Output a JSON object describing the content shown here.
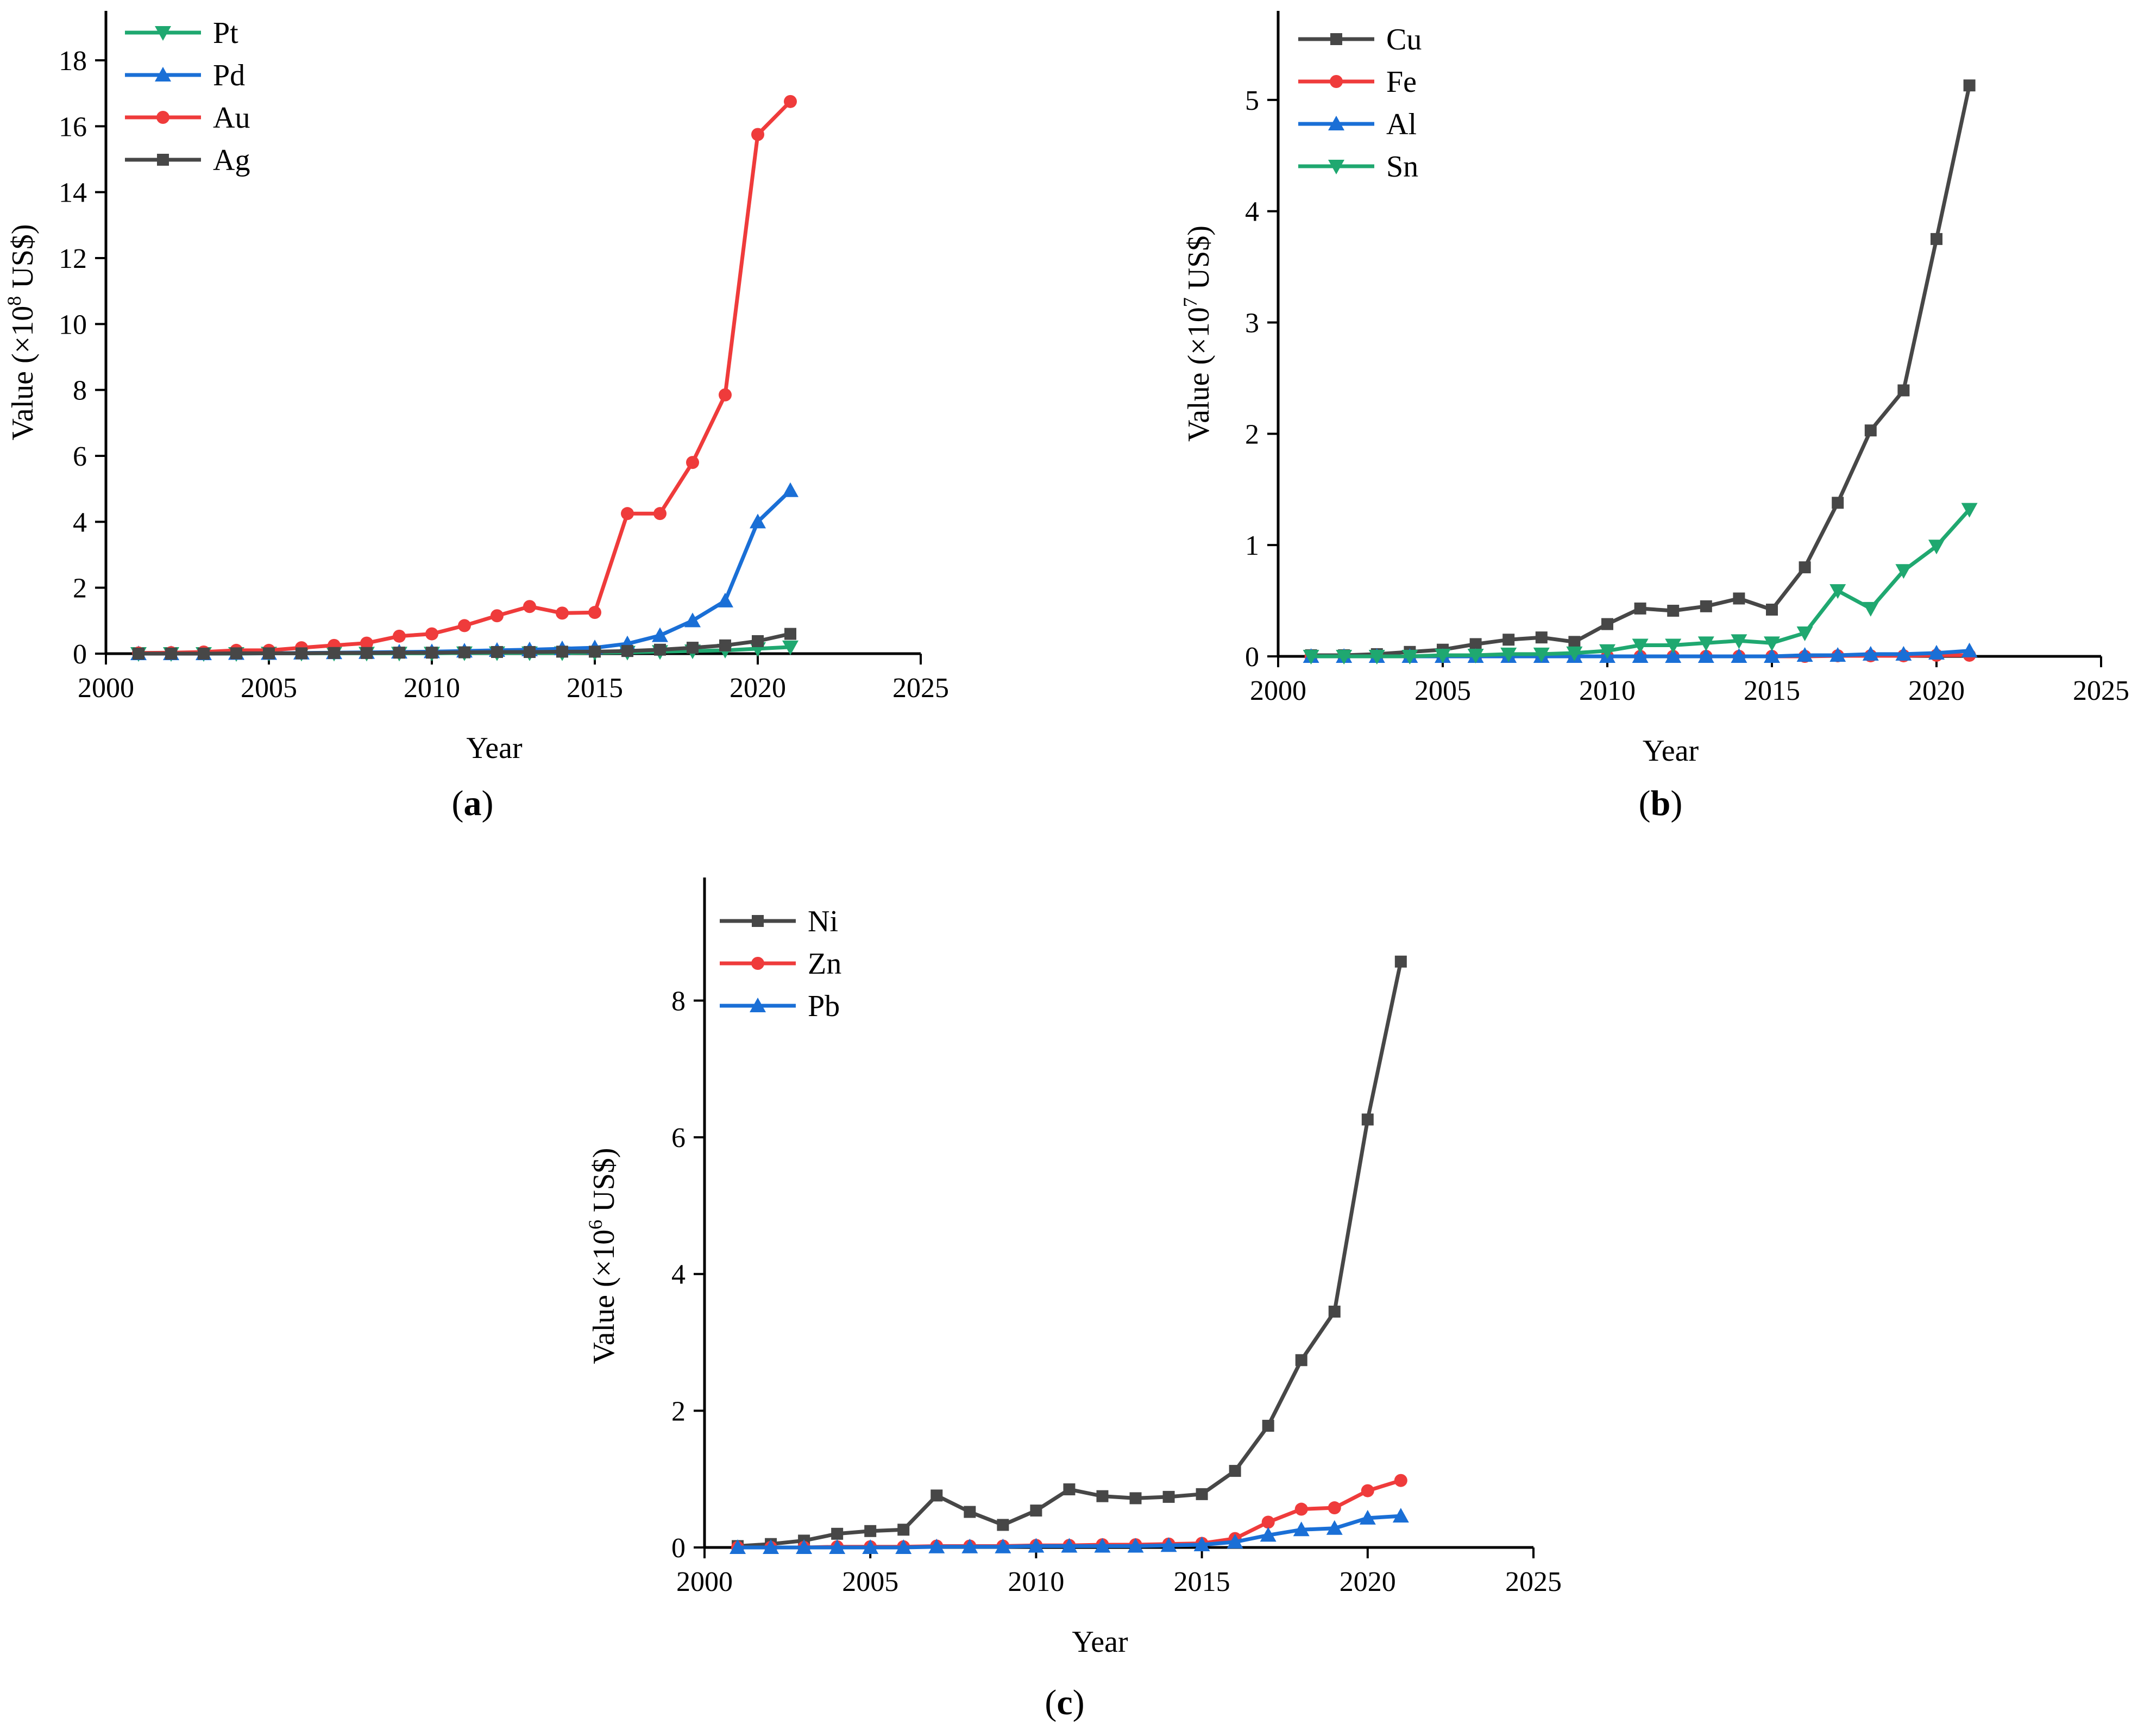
{
  "chart_data": [
    {
      "type": "line",
      "panel": "a",
      "xlabel": "Year",
      "ylabel_prefix": "Value (×10",
      "ylabel_exp": "8",
      "ylabel_suffix": " US$)",
      "xlim": [
        2000,
        2025
      ],
      "ylim": [
        0,
        19.5
      ],
      "xticks": [
        2000,
        2005,
        2010,
        2015,
        2020,
        2025
      ],
      "yticks": [
        0,
        2,
        4,
        6,
        8,
        10,
        12,
        14,
        16,
        18
      ],
      "x": [
        2001,
        2002,
        2003,
        2004,
        2005,
        2006,
        2007,
        2008,
        2009,
        2010,
        2011,
        2012,
        2013,
        2014,
        2015,
        2016,
        2017,
        2018,
        2019,
        2020,
        2021
      ],
      "legend": "top-left",
      "series": [
        {
          "name": "Pt",
          "color": "#1fa870",
          "marker": "triangle-down",
          "values": [
            0,
            0,
            0,
            0,
            0.01,
            0.01,
            0.01,
            0.01,
            0.01,
            0.01,
            0.02,
            0.02,
            0.02,
            0.02,
            0.03,
            0.04,
            0.06,
            0.08,
            0.1,
            0.15,
            0.2
          ]
        },
        {
          "name": "Pd",
          "color": "#1a6fd6",
          "marker": "triangle-up",
          "values": [
            0,
            0,
            0,
            0.01,
            0.01,
            0.02,
            0.03,
            0.04,
            0.05,
            0.06,
            0.08,
            0.1,
            0.12,
            0.15,
            0.18,
            0.3,
            0.55,
            1.0,
            1.6,
            4.0,
            4.95
          ]
        },
        {
          "name": "Au",
          "color": "#ef3b3b",
          "marker": "circle",
          "values": [
            0.02,
            0.03,
            0.05,
            0.1,
            0.1,
            0.18,
            0.25,
            0.32,
            0.53,
            0.6,
            0.85,
            1.15,
            1.43,
            1.23,
            1.25,
            4.25,
            4.25,
            5.8,
            7.85,
            15.75,
            16.75
          ]
        },
        {
          "name": "Ag",
          "color": "#474747",
          "marker": "square",
          "values": [
            0,
            0,
            0,
            0.01,
            0.01,
            0.01,
            0.02,
            0.02,
            0.03,
            0.03,
            0.04,
            0.05,
            0.05,
            0.06,
            0.06,
            0.08,
            0.12,
            0.18,
            0.25,
            0.38,
            0.6
          ]
        }
      ]
    },
    {
      "type": "line",
      "panel": "b",
      "xlabel": "Year",
      "ylabel_prefix": "Value (×10",
      "ylabel_exp": "7",
      "ylabel_suffix": " US$)",
      "xlim": [
        2000,
        2025
      ],
      "ylim": [
        0,
        5.8
      ],
      "xticks": [
        2000,
        2005,
        2010,
        2015,
        2020,
        2025
      ],
      "yticks": [
        0,
        1,
        2,
        3,
        4,
        5
      ],
      "x": [
        2001,
        2002,
        2003,
        2004,
        2005,
        2006,
        2007,
        2008,
        2009,
        2010,
        2011,
        2012,
        2013,
        2014,
        2015,
        2016,
        2017,
        2018,
        2019,
        2020,
        2021
      ],
      "legend": "top-left",
      "series": [
        {
          "name": "Cu",
          "color": "#474747",
          "marker": "square",
          "values": [
            0.01,
            0.01,
            0.02,
            0.04,
            0.06,
            0.11,
            0.15,
            0.17,
            0.13,
            0.29,
            0.43,
            0.41,
            0.45,
            0.52,
            0.42,
            0.8,
            1.38,
            2.03,
            2.39,
            3.75,
            5.13
          ]
        },
        {
          "name": "Fe",
          "color": "#ef3b3b",
          "marker": "circle",
          "values": [
            0,
            0,
            0,
            0,
            0,
            0,
            0,
            0,
            0,
            0,
            0,
            0,
            0,
            0,
            0,
            0,
            0.005,
            0.005,
            0.005,
            0.01,
            0.01
          ]
        },
        {
          "name": "Al",
          "color": "#1a6fd6",
          "marker": "triangle-up",
          "values": [
            0,
            0,
            0,
            0,
            0,
            0,
            0,
            0,
            0,
            0,
            0,
            0,
            0,
            0,
            0,
            0.01,
            0.01,
            0.02,
            0.02,
            0.03,
            0.05
          ]
        },
        {
          "name": "Sn",
          "color": "#1fa870",
          "marker": "triangle-down",
          "values": [
            0,
            0,
            0,
            0,
            0.01,
            0.01,
            0.02,
            0.02,
            0.03,
            0.05,
            0.1,
            0.1,
            0.12,
            0.14,
            0.12,
            0.21,
            0.59,
            0.43,
            0.77,
            0.99,
            1.32
          ]
        }
      ]
    },
    {
      "type": "line",
      "panel": "c",
      "xlabel": "Year",
      "ylabel_prefix": "Value (×10",
      "ylabel_exp": "6",
      "ylabel_suffix": " US$)",
      "xlim": [
        2000,
        2025
      ],
      "ylim": [
        0,
        9.8
      ],
      "xticks": [
        2000,
        2005,
        2010,
        2015,
        2020,
        2025
      ],
      "yticks": [
        0,
        2,
        4,
        6,
        8
      ],
      "x": [
        2001,
        2002,
        2003,
        2004,
        2005,
        2006,
        2007,
        2008,
        2009,
        2010,
        2011,
        2012,
        2013,
        2014,
        2015,
        2016,
        2017,
        2018,
        2019,
        2020,
        2021
      ],
      "legend": "top-left",
      "series": [
        {
          "name": "Ni",
          "color": "#474747",
          "marker": "square",
          "values": [
            0.02,
            0.05,
            0.1,
            0.2,
            0.24,
            0.26,
            0.76,
            0.52,
            0.33,
            0.54,
            0.85,
            0.75,
            0.72,
            0.74,
            0.78,
            1.12,
            1.78,
            2.74,
            3.45,
            6.26,
            8.57
          ]
        },
        {
          "name": "Zn",
          "color": "#ef3b3b",
          "marker": "circle",
          "values": [
            0,
            0,
            0,
            0.01,
            0.01,
            0.01,
            0.02,
            0.02,
            0.02,
            0.03,
            0.03,
            0.04,
            0.04,
            0.05,
            0.06,
            0.13,
            0.37,
            0.56,
            0.58,
            0.83,
            0.98
          ]
        },
        {
          "name": "Pb",
          "color": "#1a6fd6",
          "marker": "triangle-up",
          "values": [
            0,
            0,
            0,
            0,
            0,
            0,
            0.01,
            0.01,
            0.01,
            0.02,
            0.02,
            0.02,
            0.02,
            0.03,
            0.04,
            0.08,
            0.18,
            0.26,
            0.28,
            0.43,
            0.46
          ]
        }
      ]
    }
  ],
  "panel_labels": [
    {
      "open": "(",
      "letter": "a",
      "close": ")"
    },
    {
      "open": "(",
      "letter": "b",
      "close": ")"
    },
    {
      "open": "(",
      "letter": "c",
      "close": ")"
    }
  ]
}
